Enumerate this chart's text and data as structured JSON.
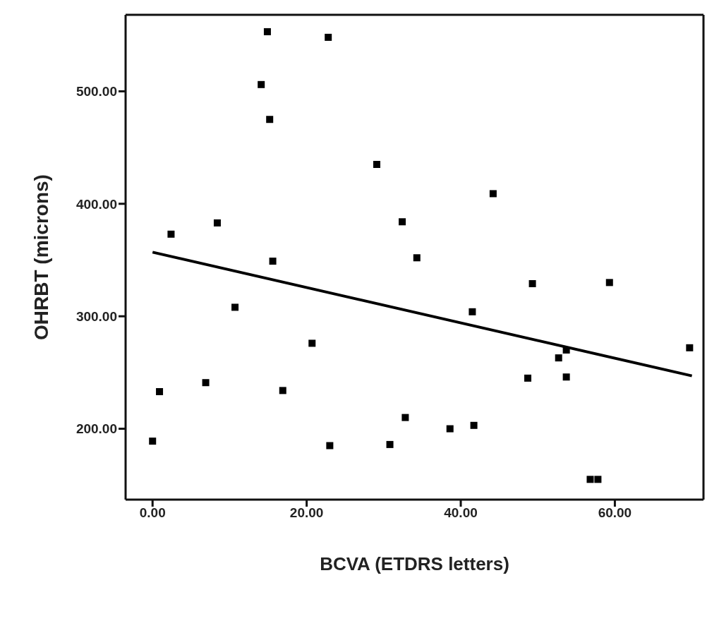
{
  "chart_data": {
    "type": "scatter",
    "xlabel": "BCVA (ETDRS letters)",
    "ylabel": "OHRBT (microns)",
    "xlim": [
      -3.5,
      71.5
    ],
    "ylim": [
      137,
      568
    ],
    "xticks": [
      {
        "value": 0,
        "label": "0.00"
      },
      {
        "value": 20,
        "label": "20.00"
      },
      {
        "value": 40,
        "label": "40.00"
      },
      {
        "value": 60,
        "label": "60.00"
      }
    ],
    "yticks": [
      {
        "value": 200,
        "label": "200.00"
      },
      {
        "value": 300,
        "label": "300.00"
      },
      {
        "value": 400,
        "label": "400.00"
      },
      {
        "value": 500,
        "label": "500.00"
      }
    ],
    "marker": "square",
    "series": [
      {
        "color": "#000000",
        "x": [
          14.9,
          22.8,
          14.1,
          15.2,
          29.1,
          8.4,
          2.4,
          32.4,
          15.6,
          10.7,
          20.7,
          6.9,
          0.9,
          16.9,
          32.8,
          0,
          23.0,
          30.8,
          44.2,
          34.3,
          49.3,
          59.3,
          41.5,
          69.7,
          52.7,
          53.7,
          48.7,
          53.7,
          38.6,
          41.7,
          56.8,
          57.8
        ],
        "values": [
          553,
          548,
          506,
          475,
          435,
          383,
          373,
          384,
          349,
          308,
          276,
          241,
          233,
          234,
          210,
          189,
          185,
          186,
          409,
          352,
          329,
          330,
          304,
          272,
          263,
          270,
          245,
          246,
          200,
          203,
          155,
          155
        ]
      },
      {
        "type": "line",
        "color": "#000000",
        "x": [
          0,
          70
        ],
        "values": [
          357,
          247
        ],
        "marker": "none",
        "line_style": "solid"
      }
    ]
  }
}
